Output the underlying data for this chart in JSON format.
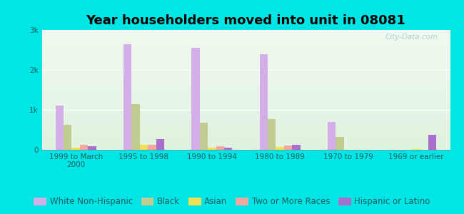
{
  "title": "Year householders moved into unit in 08081",
  "categories": [
    "1999 to March\n2000",
    "1995 to 1998",
    "1990 to 1994",
    "1980 to 1989",
    "1970 to 1979",
    "1969 or earlier"
  ],
  "series": {
    "White Non-Hispanic": [
      1100,
      2650,
      2550,
      2400,
      700,
      0
    ],
    "Black": [
      620,
      1150,
      680,
      760,
      330,
      0
    ],
    "Asian": [
      50,
      130,
      60,
      80,
      0,
      20
    ],
    "Two or More Races": [
      120,
      130,
      90,
      100,
      0,
      0
    ],
    "Hispanic or Latino": [
      90,
      260,
      60,
      120,
      0,
      370
    ]
  },
  "colors": {
    "White Non-Hispanic": "#d4aee8",
    "Black": "#c0cc90",
    "Asian": "#f0e050",
    "Two or More Races": "#f0a8a0",
    "Hispanic or Latino": "#a870cc"
  },
  "ylim": [
    0,
    3000
  ],
  "yticks": [
    0,
    1000,
    2000,
    3000
  ],
  "ytick_labels": [
    "0",
    "1k",
    "2k",
    "3k"
  ],
  "background_color": "#00e5e5",
  "bar_width": 0.12,
  "title_fontsize": 13,
  "legend_fontsize": 8.5,
  "tick_fontsize": 7.5,
  "axis_label_color": "#1a6060",
  "watermark": "City-Data.com"
}
